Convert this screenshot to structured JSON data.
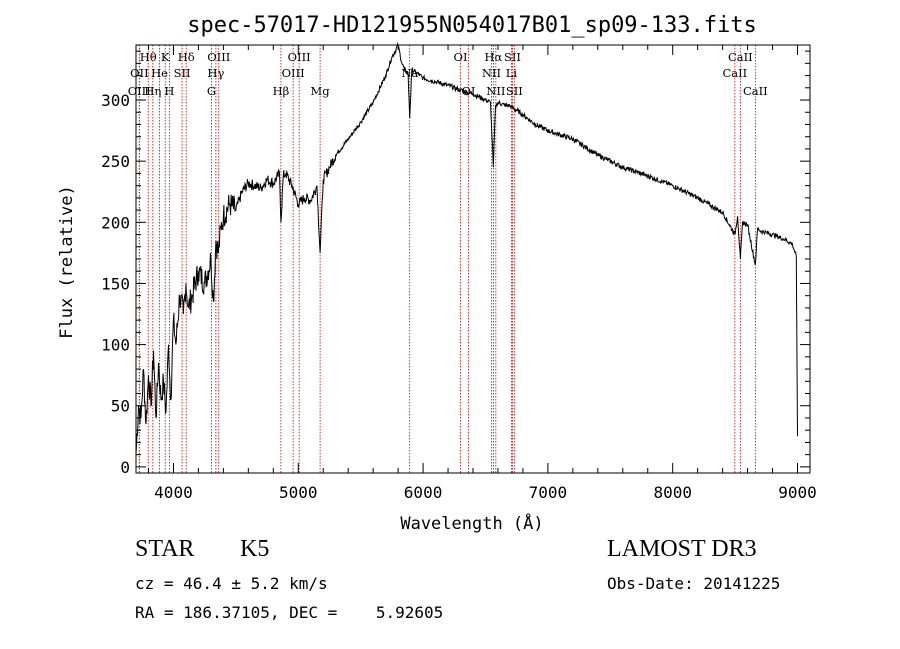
{
  "chart_data": {
    "type": "line",
    "title": "spec-57017-HD121955N054017B01_sp09-133.fits",
    "xlabel": "Wavelength (Å)",
    "ylabel": "Flux (relative)",
    "xlim": [
      3700,
      9100
    ],
    "ylim": [
      -5,
      345
    ],
    "xticks": [
      4000,
      5000,
      6000,
      7000,
      8000,
      9000
    ],
    "yticks": [
      0,
      50,
      100,
      150,
      200,
      250,
      300
    ],
    "spectrum": {
      "name": "flux",
      "x": [
        3700,
        3720,
        3740,
        3760,
        3780,
        3800,
        3820,
        3840,
        3860,
        3880,
        3900,
        3920,
        3940,
        3960,
        3980,
        4000,
        4020,
        4050,
        4080,
        4100,
        4120,
        4150,
        4200,
        4250,
        4300,
        4320,
        4340,
        4360,
        4380,
        4400,
        4450,
        4500,
        4550,
        4600,
        4650,
        4700,
        4750,
        4800,
        4850,
        4861,
        4880,
        4900,
        4950,
        5000,
        5050,
        5100,
        5150,
        5175,
        5200,
        5250,
        5300,
        5400,
        5500,
        5600,
        5700,
        5750,
        5800,
        5830,
        5850,
        5880,
        5893,
        5910,
        5950,
        6000,
        6100,
        6200,
        6300,
        6400,
        6500,
        6540,
        6563,
        6580,
        6600,
        6650,
        6700,
        6800,
        6900,
        7000,
        7200,
        7400,
        7600,
        7800,
        8000,
        8200,
        8400,
        8498,
        8520,
        8542,
        8560,
        8600,
        8662,
        8680,
        8700,
        8800,
        8900,
        8960,
        8990,
        9000
      ],
      "y": [
        10,
        50,
        40,
        80,
        35,
        75,
        50,
        95,
        40,
        85,
        55,
        70,
        45,
        100,
        55,
        120,
        100,
        140,
        125,
        150,
        130,
        140,
        160,
        150,
        170,
        135,
        185,
        175,
        195,
        205,
        215,
        210,
        225,
        232,
        230,
        228,
        235,
        232,
        240,
        200,
        238,
        240,
        230,
        215,
        220,
        218,
        230,
        175,
        235,
        245,
        255,
        268,
        282,
        298,
        320,
        335,
        345,
        330,
        325,
        322,
        285,
        325,
        322,
        318,
        315,
        312,
        308,
        305,
        300,
        298,
        245,
        295,
        298,
        296,
        295,
        288,
        280,
        275,
        268,
        255,
        245,
        238,
        230,
        220,
        208,
        190,
        205,
        170,
        200,
        198,
        165,
        195,
        193,
        190,
        186,
        182,
        172,
        25
      ]
    },
    "lines": [
      {
        "label": "Hθ",
        "wl": 3798,
        "row": 0
      },
      {
        "label": "OII",
        "wl": 3727,
        "row": 1
      },
      {
        "label": "OIII",
        "wl": 3726,
        "row": 2
      },
      {
        "label": "K",
        "wl": 3934,
        "row": 0
      },
      {
        "label": "He",
        "wl": 3889,
        "row": 1
      },
      {
        "label": "Hη",
        "wl": 3835,
        "row": 2
      },
      {
        "label": "SII",
        "wl": 4069,
        "row": 1
      },
      {
        "label": "H",
        "wl": 3968,
        "row": 2
      },
      {
        "label": "Hδ",
        "wl": 4102,
        "row": 0
      },
      {
        "label": "OIII",
        "wl": 4363,
        "row": 0
      },
      {
        "label": "Hγ",
        "wl": 4340,
        "row": 1
      },
      {
        "label": "G",
        "wl": 4305,
        "row": 2
      },
      {
        "label": "OIII",
        "wl": 5007,
        "row": 0
      },
      {
        "label": "OIII",
        "wl": 4959,
        "row": 1
      },
      {
        "label": "Hβ",
        "wl": 4861,
        "row": 2
      },
      {
        "label": "Mg",
        "wl": 5175,
        "row": 2
      },
      {
        "label": "Na",
        "wl": 5893,
        "row": 1
      },
      {
        "label": "OI",
        "wl": 6300,
        "row": 0
      },
      {
        "label": "OI",
        "wl": 6364,
        "row": 2
      },
      {
        "label": "Hα",
        "wl": 6563,
        "row": 0
      },
      {
        "label": "NII",
        "wl": 6548,
        "row": 1
      },
      {
        "label": "NII",
        "wl": 6583,
        "row": 2
      },
      {
        "label": "SII",
        "wl": 6716,
        "row": 0
      },
      {
        "label": "Li",
        "wl": 6708,
        "row": 1
      },
      {
        "label": "SII",
        "wl": 6731,
        "row": 2
      },
      {
        "label": "CaII",
        "wl": 8542,
        "row": 0
      },
      {
        "label": "CaII",
        "wl": 8498,
        "row": 1
      },
      {
        "label": "CaII",
        "wl": 8662,
        "row": 2
      }
    ]
  },
  "info": {
    "object_type": "STAR",
    "spectral_class": "K5",
    "survey": "LAMOST DR3",
    "redshift": "cz = 46.4 ± 5.2 km/s",
    "obs_date": "Obs-Date: 20141225",
    "coords": "RA = 186.37105, DEC =    5.92605"
  },
  "colors": {
    "line_marker": "#cc0000",
    "axis": "#000000",
    "spectrum": "#000000"
  }
}
